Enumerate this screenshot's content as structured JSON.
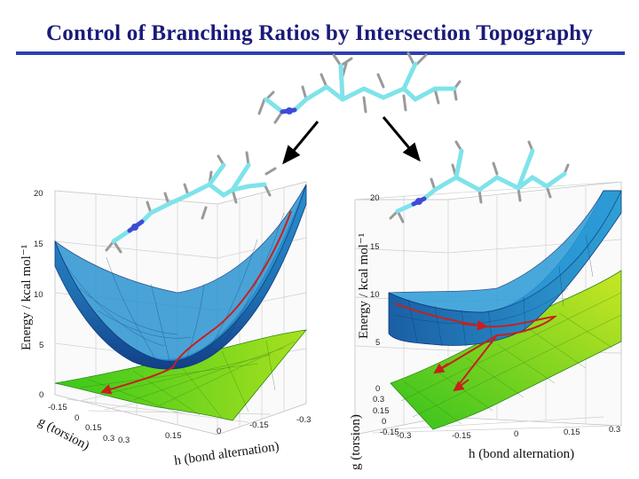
{
  "title": "Control of Branching Ratios by Intersection Topography",
  "colors": {
    "title": "#1a1a7a",
    "rule": "#2f3fb0",
    "upper_surface": "#1f86c4",
    "lower_surface": "#56c51e",
    "trajectory": "#c8201c",
    "molecule_carbon": "#7fe3ea",
    "molecule_hydrogen": "#9a9a9a",
    "molecule_nitrogen": "#3e4bd6"
  },
  "left_plot": {
    "ylabel": "Energy / kcal mol⁻¹",
    "xlabel": "h (bond alternation)",
    "zlabel": "g (torsion)",
    "z_ticks": [
      "0",
      "5",
      "10",
      "15",
      "20"
    ],
    "h_ticks": [
      "0.3",
      "0.15",
      "0",
      "-0.15",
      "-0.3"
    ],
    "g_ticks": [
      "-0.15",
      "0",
      "0.15",
      "0.3"
    ]
  },
  "right_plot": {
    "ylabel": "Energy / kcal mol⁻¹",
    "xlabel": "h (bond alternation)",
    "zlabel": "g (torsion)",
    "z_ticks": [
      "0",
      "5",
      "10",
      "15",
      "20"
    ],
    "h_ticks": [
      "-0.3",
      "-0.15",
      "0",
      "0.15",
      "0.3"
    ],
    "g_ticks": [
      "0.3",
      "0.15",
      "0",
      "-0.15"
    ]
  },
  "icons": [
    "molecule-icon",
    "arrow-icon"
  ]
}
